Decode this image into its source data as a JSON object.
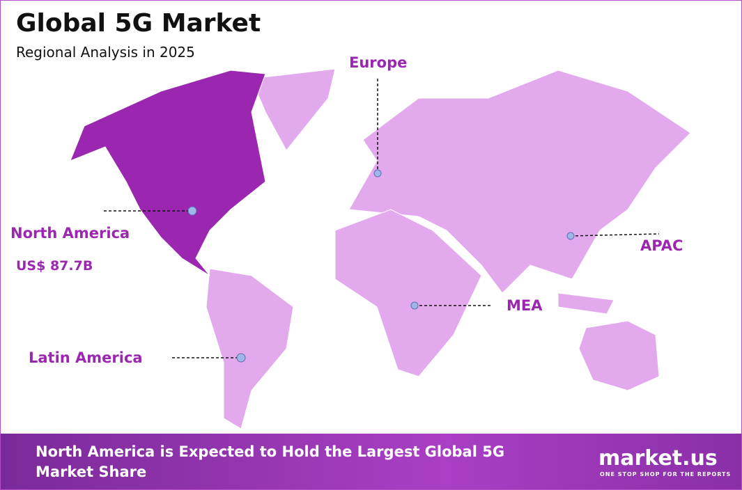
{
  "header": {
    "title": "Global 5G Market",
    "subtitle": "Regional Analysis in 2025"
  },
  "regions": [
    {
      "label": "North America",
      "value": "US$ 87.7B"
    },
    {
      "label": "Europe"
    },
    {
      "label": "APAC"
    },
    {
      "label": "MEA"
    },
    {
      "label": "Latin America"
    }
  ],
  "footer": {
    "text": "North America is Expected to Hold the Largest Global 5G Market Share"
  },
  "logo": {
    "name": "market.us",
    "tagline": "ONE STOP SHOP FOR THE REPORTS"
  }
}
